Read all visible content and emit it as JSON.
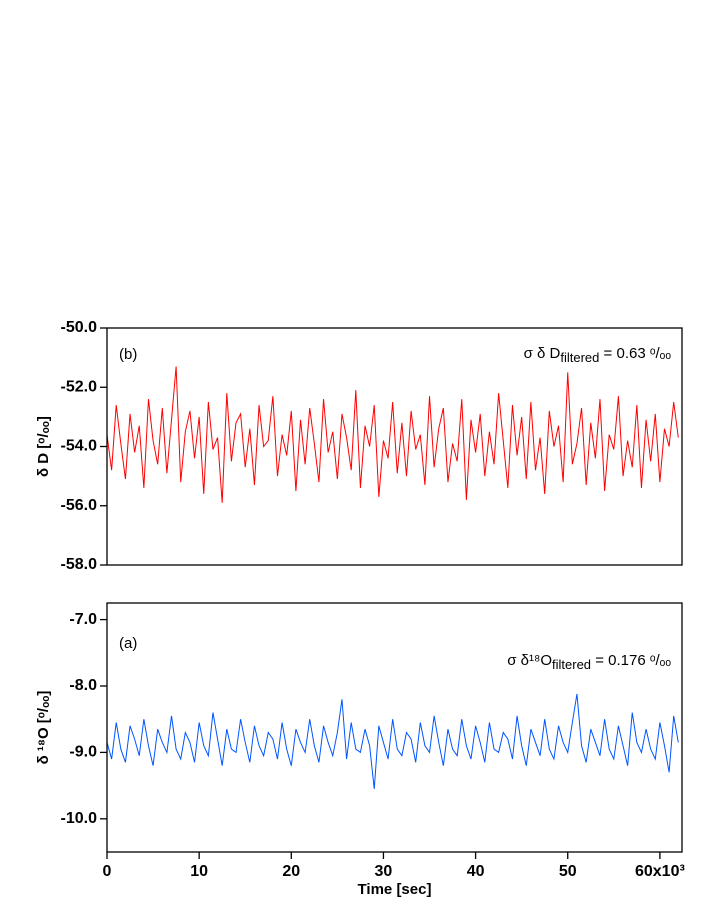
{
  "chart_data": [
    {
      "type": "line",
      "panel_label": "(b)",
      "ylabel": "δ D [ᵒ/ₒₒ]",
      "stat_prefix": "σ  δ D",
      "stat_subscript": "filtered",
      "stat_suffix": " = 0.63 ᵒ/ₒₒ",
      "color": "#ff0000",
      "xlim": [
        0,
        62400
      ],
      "ylim": [
        -58,
        -50
      ],
      "yticks": [
        {
          "value": -50,
          "label": "-50.0"
        },
        {
          "value": -52,
          "label": "-52.0"
        },
        {
          "value": -54,
          "label": "-54.0"
        },
        {
          "value": -56,
          "label": "-56.0"
        },
        {
          "value": -58,
          "label": "-58.0"
        }
      ],
      "x": [
        0,
        500,
        1000,
        1500,
        2000,
        2500,
        3000,
        3500,
        4000,
        4500,
        5000,
        5500,
        6000,
        6500,
        7000,
        7500,
        8000,
        8500,
        9000,
        9500,
        10000,
        10500,
        11000,
        11500,
        12000,
        12500,
        13000,
        13500,
        14000,
        14500,
        15000,
        15500,
        16000,
        16500,
        17000,
        17500,
        18000,
        18500,
        19000,
        19500,
        20000,
        20500,
        21000,
        21500,
        22000,
        22500,
        23000,
        23500,
        24000,
        24500,
        25000,
        25500,
        26000,
        26500,
        27000,
        27500,
        28000,
        28500,
        29000,
        29500,
        30000,
        30500,
        31000,
        31500,
        32000,
        32500,
        33000,
        33500,
        34000,
        34500,
        35000,
        35500,
        36000,
        36500,
        37000,
        37500,
        38000,
        38500,
        39000,
        39500,
        40000,
        40500,
        41000,
        41500,
        42000,
        42500,
        43000,
        43500,
        44000,
        44500,
        45000,
        45500,
        46000,
        46500,
        47000,
        47500,
        48000,
        48500,
        49000,
        49500,
        50000,
        50500,
        51000,
        51500,
        52000,
        52500,
        53000,
        53500,
        54000,
        54500,
        55000,
        55500,
        56000,
        56500,
        57000,
        57500,
        58000,
        58500,
        59000,
        59500,
        60000,
        60500,
        61000,
        61500,
        62000
      ],
      "values": [
        -53.6,
        -54.8,
        -52.6,
        -53.9,
        -55.1,
        -52.9,
        -54.2,
        -53.3,
        -55.4,
        -52.4,
        -53.8,
        -54.6,
        -52.7,
        -54.9,
        -53.1,
        -51.3,
        -55.2,
        -53.5,
        -52.8,
        -54.4,
        -53.0,
        -55.6,
        -52.5,
        -54.1,
        -53.7,
        -55.9,
        -52.2,
        -54.5,
        -53.2,
        -52.9,
        -54.7,
        -53.4,
        -55.3,
        -52.6,
        -54.0,
        -53.8,
        -52.3,
        -55.0,
        -53.6,
        -54.3,
        -52.8,
        -55.5,
        -53.1,
        -54.6,
        -52.7,
        -53.9,
        -55.2,
        -52.4,
        -54.2,
        -53.5,
        -55.1,
        -52.9,
        -53.7,
        -54.8,
        -52.1,
        -55.4,
        -53.3,
        -54.0,
        -52.6,
        -55.7,
        -53.8,
        -54.4,
        -52.5,
        -54.9,
        -53.2,
        -55.0,
        -52.8,
        -54.1,
        -53.6,
        -55.3,
        -52.3,
        -54.7,
        -53.4,
        -52.7,
        -55.2,
        -53.9,
        -54.5,
        -52.4,
        -55.8,
        -53.1,
        -54.2,
        -52.9,
        -55.0,
        -53.5,
        -54.6,
        -52.2,
        -53.8,
        -55.4,
        -52.6,
        -54.3,
        -53.0,
        -55.1,
        -52.5,
        -54.8,
        -53.7,
        -55.6,
        -52.8,
        -54.0,
        -53.3,
        -55.2,
        -51.5,
        -54.6,
        -53.9,
        -52.7,
        -55.3,
        -53.2,
        -54.4,
        -52.4,
        -55.5,
        -53.6,
        -54.1,
        -52.3,
        -55.0,
        -53.8,
        -54.7,
        -52.6,
        -55.4,
        -53.1,
        -54.5,
        -52.9,
        -55.2,
        -53.4,
        -54.0,
        -52.5,
        -53.7
      ]
    },
    {
      "type": "line",
      "panel_label": "(a)",
      "ylabel": "δ ¹⁸O [ᵒ/ₒₒ]",
      "stat_prefix": "σ  δ¹⁸O",
      "stat_subscript": "filtered",
      "stat_suffix": " = 0.176 ᵒ/ₒₒ",
      "color": "#0055ff",
      "xlabel": "Time [sec]",
      "xlim": [
        0,
        62400
      ],
      "ylim": [
        -10.5,
        -6.75
      ],
      "xticks": [
        0,
        {
          "value": 10000,
          "label": "10"
        },
        {
          "value": 20000,
          "label": "20"
        },
        {
          "value": 30000,
          "label": "30"
        },
        {
          "value": 40000,
          "label": "40"
        },
        {
          "value": 50000,
          "label": "50"
        },
        {
          "value": 60000,
          "label": "60x10³"
        }
      ],
      "yticks": [
        {
          "value": -7,
          "label": "-7.0"
        },
        {
          "value": -8,
          "label": "-8.0"
        },
        {
          "value": -9,
          "label": "-9.0"
        },
        {
          "value": -10,
          "label": "-10.0"
        }
      ],
      "x": [
        0,
        500,
        1000,
        1500,
        2000,
        2500,
        3000,
        3500,
        4000,
        4500,
        5000,
        5500,
        6000,
        6500,
        7000,
        7500,
        8000,
        8500,
        9000,
        9500,
        10000,
        10500,
        11000,
        11500,
        12000,
        12500,
        13000,
        13500,
        14000,
        14500,
        15000,
        15500,
        16000,
        16500,
        17000,
        17500,
        18000,
        18500,
        19000,
        19500,
        20000,
        20500,
        21000,
        21500,
        22000,
        22500,
        23000,
        23500,
        24000,
        24500,
        25000,
        25500,
        26000,
        26500,
        27000,
        27500,
        28000,
        28500,
        29000,
        29500,
        30000,
        30500,
        31000,
        31500,
        32000,
        32500,
        33000,
        33500,
        34000,
        34500,
        35000,
        35500,
        36000,
        36500,
        37000,
        37500,
        38000,
        38500,
        39000,
        39500,
        40000,
        40500,
        41000,
        41500,
        42000,
        42500,
        43000,
        43500,
        44000,
        44500,
        45000,
        45500,
        46000,
        46500,
        47000,
        47500,
        48000,
        48500,
        49000,
        49500,
        50000,
        50500,
        51000,
        51500,
        52000,
        52500,
        53000,
        53500,
        54000,
        54500,
        55000,
        55500,
        56000,
        56500,
        57000,
        57500,
        58000,
        58500,
        59000,
        59500,
        60000,
        60500,
        61000,
        61500,
        62000
      ],
      "values": [
        -8.85,
        -9.1,
        -8.55,
        -8.95,
        -9.15,
        -8.6,
        -8.8,
        -9.05,
        -8.5,
        -8.9,
        -9.2,
        -8.65,
        -8.85,
        -9.0,
        -8.45,
        -8.95,
        -9.1,
        -8.7,
        -8.85,
        -9.15,
        -8.55,
        -8.9,
        -9.05,
        -8.4,
        -8.8,
        -9.2,
        -8.65,
        -8.95,
        -9.0,
        -8.5,
        -8.85,
        -9.15,
        -8.6,
        -8.9,
        -9.05,
        -8.7,
        -8.8,
        -9.1,
        -8.55,
        -8.95,
        -9.2,
        -8.65,
        -8.85,
        -9.0,
        -8.5,
        -8.9,
        -9.15,
        -8.6,
        -8.85,
        -9.05,
        -8.7,
        -8.2,
        -9.1,
        -8.55,
        -8.95,
        -9.0,
        -8.65,
        -8.9,
        -9.55,
        -8.6,
        -8.85,
        -9.1,
        -8.5,
        -8.95,
        -9.05,
        -8.7,
        -8.8,
        -9.15,
        -8.55,
        -8.9,
        -9.0,
        -8.45,
        -8.85,
        -9.2,
        -8.65,
        -8.95,
        -9.05,
        -8.5,
        -8.9,
        -9.1,
        -8.6,
        -8.85,
        -9.15,
        -8.55,
        -8.95,
        -9.0,
        -8.7,
        -8.8,
        -9.1,
        -8.45,
        -8.9,
        -9.2,
        -8.65,
        -8.85,
        -9.05,
        -8.5,
        -8.95,
        -9.1,
        -8.6,
        -8.85,
        -9.0,
        -8.55,
        -8.12,
        -8.9,
        -9.15,
        -8.65,
        -8.85,
        -9.05,
        -8.5,
        -8.95,
        -9.1,
        -8.6,
        -8.9,
        -9.2,
        -8.4,
        -8.85,
        -9.0,
        -8.65,
        -8.95,
        -9.1,
        -8.55,
        -8.9,
        -9.3,
        -8.45,
        -8.85
      ]
    }
  ]
}
